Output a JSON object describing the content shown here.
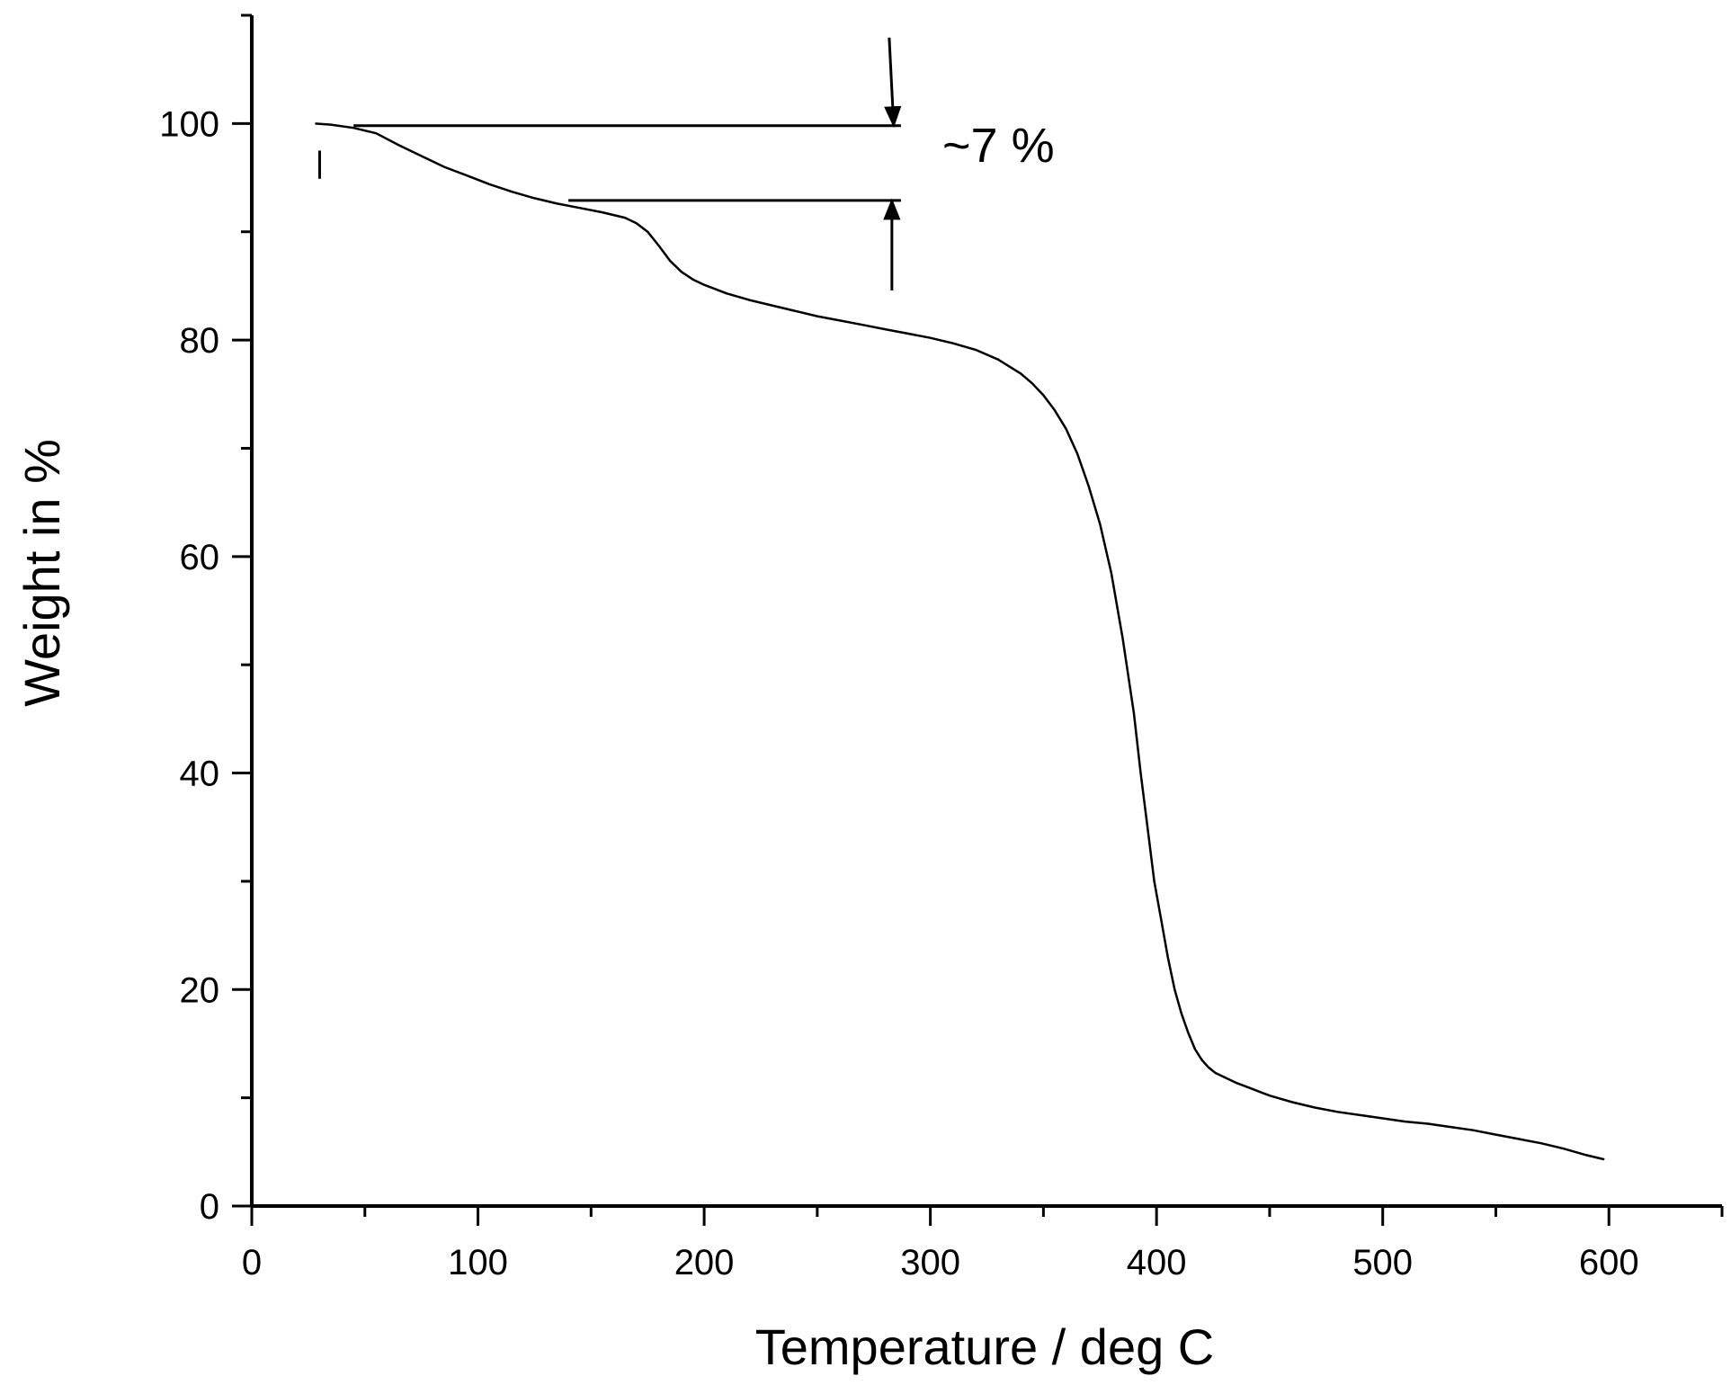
{
  "chart_data": {
    "type": "line",
    "title": "",
    "xlabel": "Temperature / deg C",
    "ylabel": "Weight in %",
    "xlim": [
      0,
      650
    ],
    "ylim": [
      0,
      110
    ],
    "x_ticks": [
      0,
      100,
      200,
      300,
      400,
      500,
      600
    ],
    "y_ticks": [
      0,
      20,
      40,
      60,
      80,
      100
    ],
    "grid": false,
    "legend": "none",
    "colors": {
      "line": "#000000",
      "axis": "#000000",
      "background": "#ffffff"
    },
    "series": [
      {
        "x": [
          28,
          35,
          45,
          55,
          65,
          75,
          85,
          95,
          105,
          115,
          125,
          135,
          145,
          155,
          165,
          170,
          175,
          180,
          185,
          190,
          195,
          200,
          210,
          220,
          230,
          240,
          250,
          260,
          270,
          280,
          290,
          300,
          310,
          320,
          330,
          340,
          345,
          350,
          355,
          360,
          365,
          370,
          375,
          380,
          385,
          390,
          393,
          396,
          399,
          402,
          405,
          408,
          411,
          414,
          417,
          420,
          423,
          426,
          430,
          435,
          440,
          445,
          450,
          460,
          470,
          480,
          490,
          500,
          510,
          520,
          530,
          540,
          550,
          560,
          570,
          580,
          590,
          598
        ],
        "y": [
          100,
          99.9,
          99.6,
          99.1,
          98.0,
          97.0,
          96.0,
          95.2,
          94.4,
          93.7,
          93.1,
          92.6,
          92.2,
          91.8,
          91.3,
          90.8,
          90.0,
          88.7,
          87.3,
          86.3,
          85.6,
          85.1,
          84.3,
          83.7,
          83.2,
          82.7,
          82.2,
          81.8,
          81.4,
          81.0,
          80.6,
          80.2,
          79.7,
          79.1,
          78.2,
          76.9,
          76.0,
          74.9,
          73.5,
          71.8,
          69.5,
          66.5,
          63.0,
          58.5,
          52.5,
          45.5,
          40.0,
          35.0,
          30.0,
          26.5,
          23.0,
          20.0,
          17.8,
          16.0,
          14.5,
          13.5,
          12.8,
          12.3,
          11.9,
          11.4,
          11.0,
          10.6,
          10.2,
          9.6,
          9.1,
          8.7,
          8.4,
          8.1,
          7.8,
          7.6,
          7.3,
          7.0,
          6.6,
          6.2,
          5.8,
          5.3,
          4.7,
          4.3
        ]
      }
    ],
    "annotations": [
      {
        "text": "~7 %",
        "upper_level": 99.8,
        "lower_level": 92.9,
        "upper_line_x": [
          45,
          287
        ],
        "lower_line_x": [
          140,
          287
        ],
        "arrow_x": 283,
        "marker_x": 30,
        "marker_y": [
          94.9,
          97.5
        ]
      }
    ]
  }
}
